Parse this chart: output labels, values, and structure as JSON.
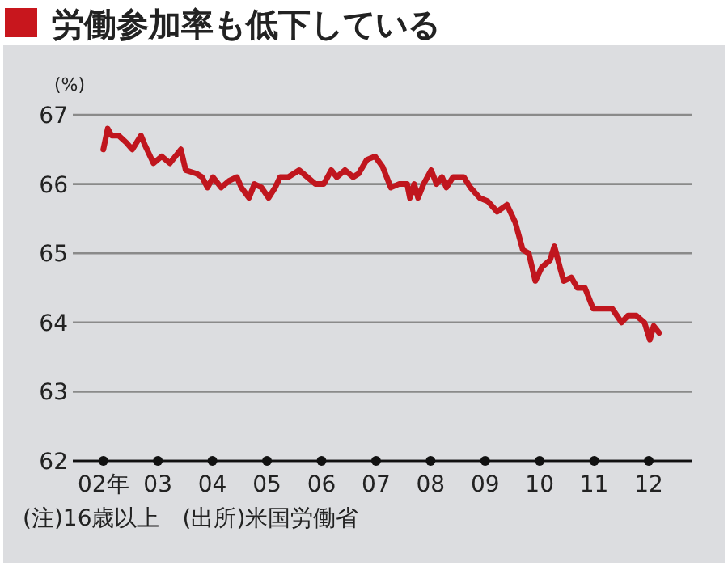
{
  "chart_data": {
    "type": "line",
    "title": "労働参加率も低下している",
    "ylabel": "(%)",
    "annotations": [
      "(注)16歳以上　(出所)米国労働省"
    ],
    "xlim": [
      1.44,
      12.8
    ],
    "ylim": [
      62,
      67
    ],
    "yticks": [
      62,
      63,
      64,
      65,
      66,
      67
    ],
    "xticks": [
      {
        "value": 2,
        "label": "02年"
      },
      {
        "value": 3,
        "label": "03"
      },
      {
        "value": 4,
        "label": "04"
      },
      {
        "value": 5,
        "label": "05"
      },
      {
        "value": 6,
        "label": "06"
      },
      {
        "value": 7,
        "label": "07"
      },
      {
        "value": 8,
        "label": "08"
      },
      {
        "value": 9,
        "label": "09"
      },
      {
        "value": 10,
        "label": "10"
      },
      {
        "value": 11,
        "label": "11"
      },
      {
        "value": 12,
        "label": "12"
      }
    ],
    "grid": "y",
    "series": [
      {
        "color": "#c0161e",
        "x": [
          2.0,
          2.08,
          2.15,
          2.28,
          2.42,
          2.53,
          2.69,
          2.77,
          2.92,
          3.07,
          3.22,
          3.42,
          3.51,
          3.71,
          3.81,
          3.91,
          4.01,
          4.16,
          4.31,
          4.45,
          4.53,
          4.67,
          4.77,
          4.9,
          5.03,
          5.15,
          5.24,
          5.39,
          5.59,
          5.74,
          5.89,
          6.04,
          6.18,
          6.28,
          6.43,
          6.58,
          6.68,
          6.83,
          6.98,
          7.12,
          7.27,
          7.42,
          7.57,
          7.62,
          7.7,
          7.77,
          7.87,
          8.01,
          8.11,
          8.21,
          8.29,
          8.41,
          8.61,
          8.73,
          8.9,
          9.05,
          9.22,
          9.4,
          9.55,
          9.69,
          9.8,
          9.92,
          10.04,
          10.19,
          10.27,
          10.37,
          10.44,
          10.58,
          10.69,
          10.83,
          10.98,
          11.18,
          11.33,
          11.5,
          11.62,
          11.77,
          11.92,
          12.02,
          12.09,
          12.19
        ],
        "values": [
          66.5,
          66.8,
          66.7,
          66.7,
          66.6,
          66.5,
          66.7,
          66.55,
          66.3,
          66.4,
          66.3,
          66.5,
          66.2,
          66.15,
          66.1,
          65.95,
          66.1,
          65.95,
          66.05,
          66.1,
          65.95,
          65.8,
          66.0,
          65.95,
          65.8,
          65.95,
          66.1,
          66.1,
          66.2,
          66.1,
          66.0,
          66.0,
          66.2,
          66.1,
          66.2,
          66.1,
          66.15,
          66.35,
          66.4,
          66.25,
          65.95,
          66.0,
          66.0,
          65.8,
          66.0,
          65.8,
          66.0,
          66.2,
          66.0,
          66.1,
          65.95,
          66.1,
          66.1,
          65.95,
          65.8,
          65.75,
          65.6,
          65.7,
          65.45,
          65.05,
          65.0,
          64.6,
          64.8,
          64.9,
          65.1,
          64.8,
          64.6,
          64.65,
          64.5,
          64.5,
          64.2,
          64.2,
          64.2,
          64.0,
          64.1,
          64.1,
          64.0,
          63.75,
          63.95,
          63.85
        ]
      }
    ]
  }
}
